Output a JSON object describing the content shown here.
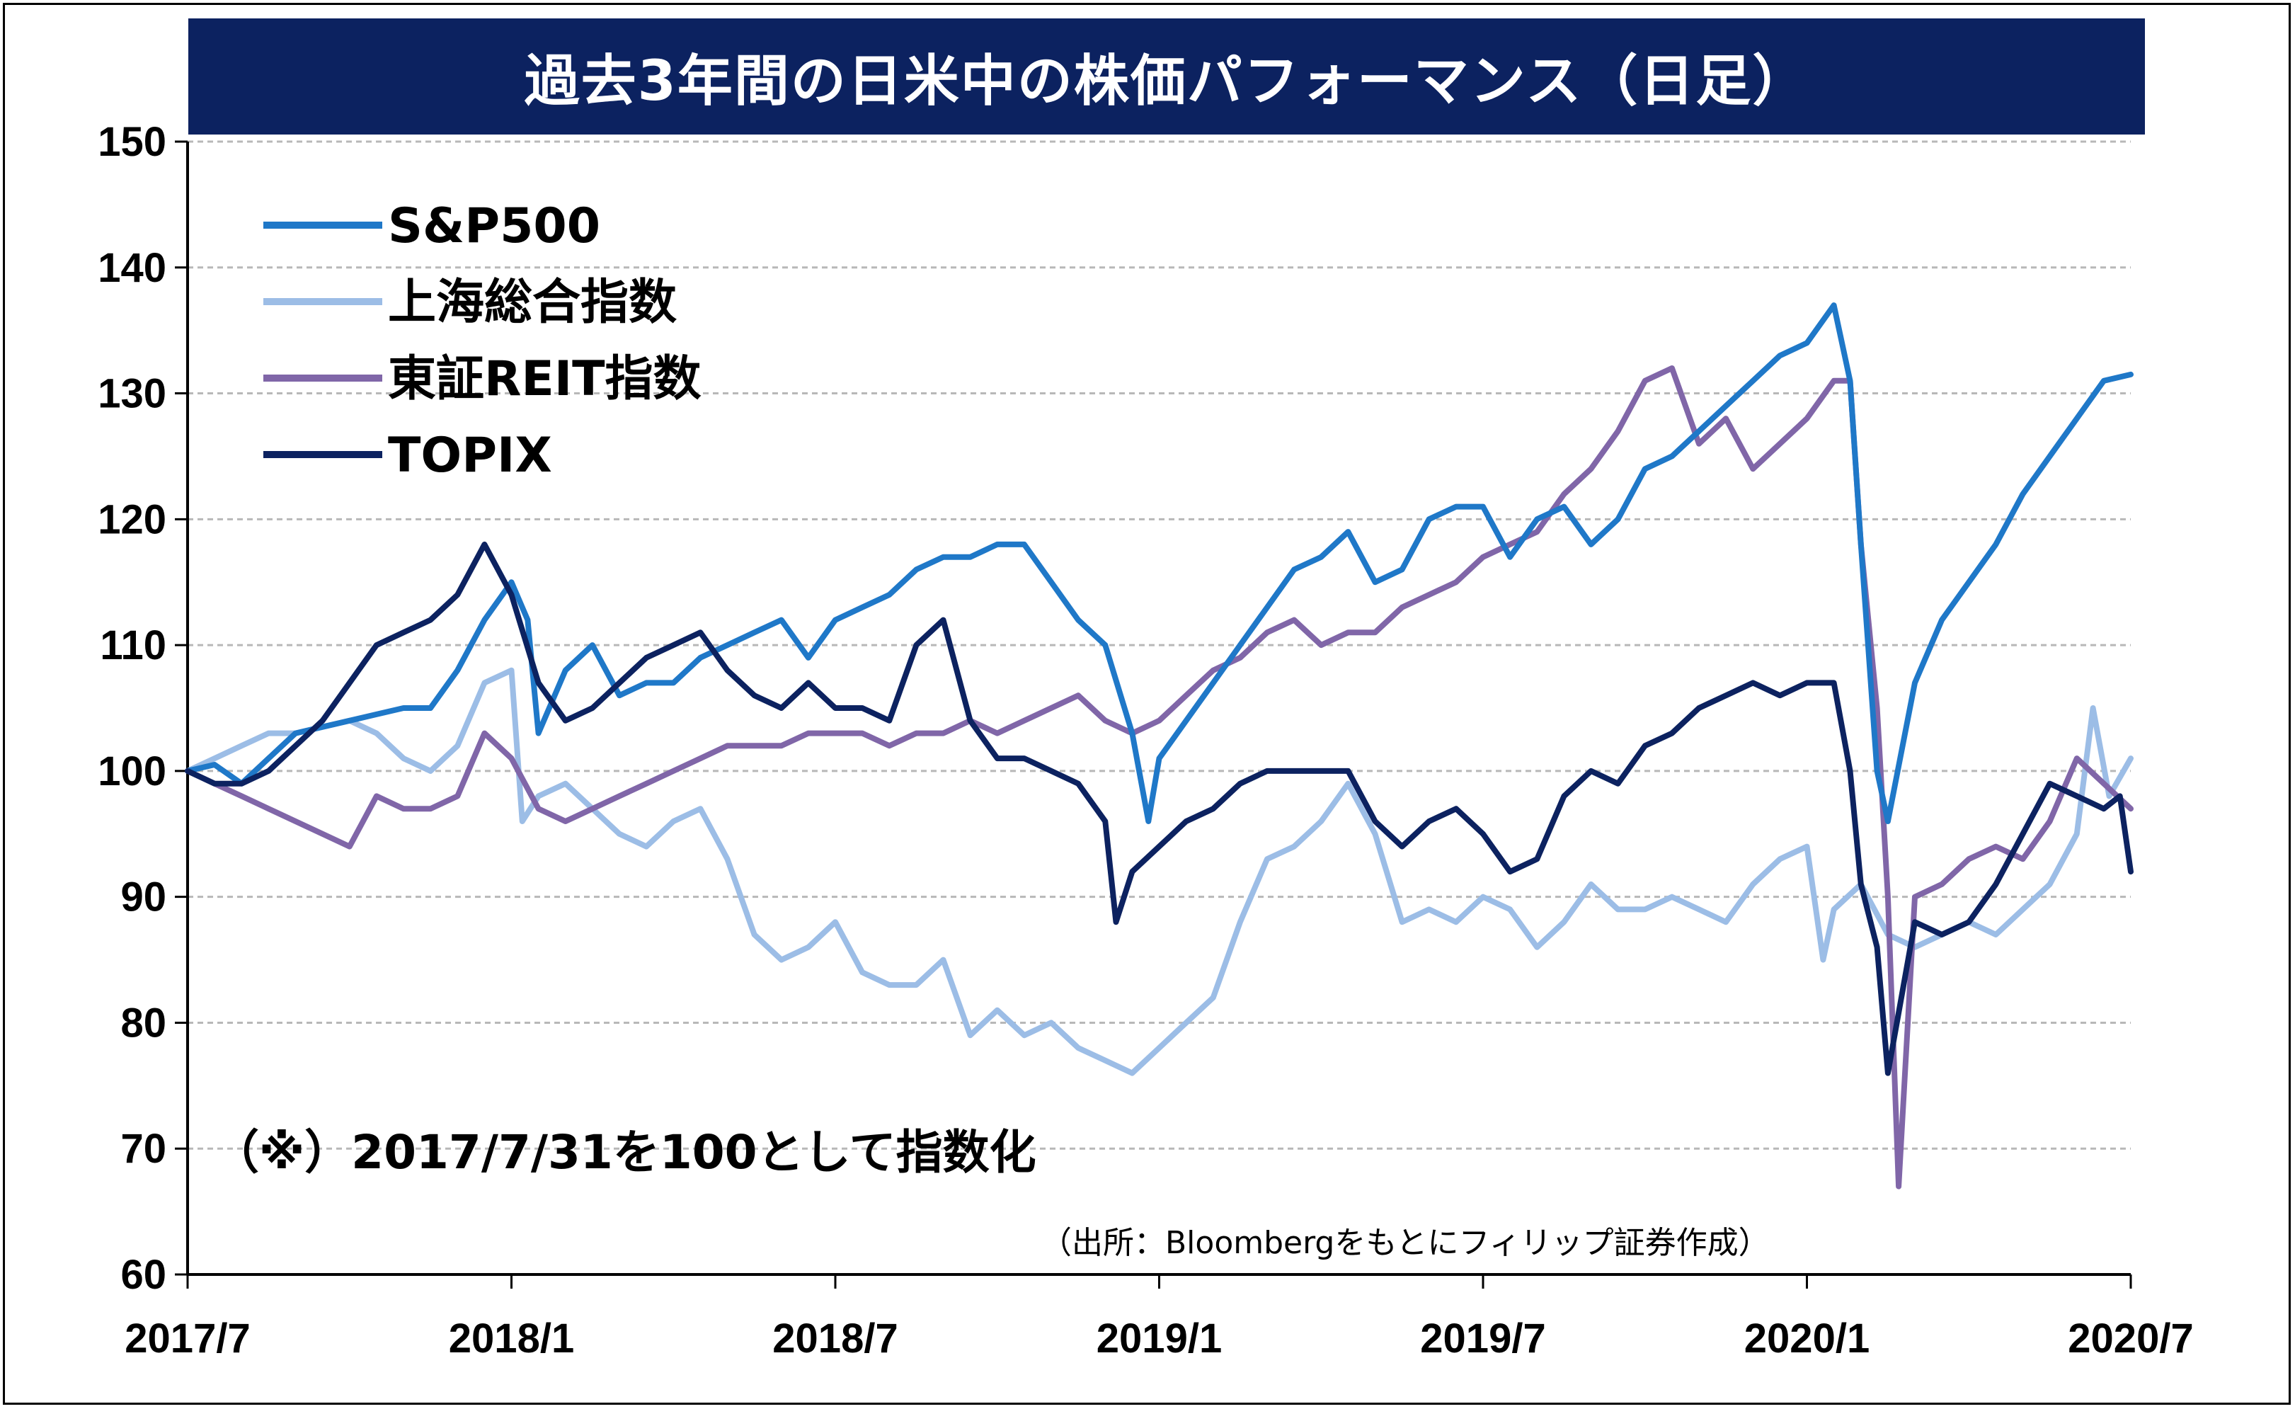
{
  "chart_data": {
    "type": "line",
    "title": "過去3年間の日米中の株価パフォーマンス（日足）",
    "x_tick_labels": [
      "2017/7",
      "2018/1",
      "2018/7",
      "2019/1",
      "2019/7",
      "2020/1",
      "2020/7"
    ],
    "x_ticks_months": [
      0,
      6,
      12,
      18,
      24,
      30,
      36
    ],
    "x_range_months": [
      0,
      36
    ],
    "ylim": [
      60,
      150
    ],
    "y_ticks": [
      60,
      70,
      80,
      90,
      100,
      110,
      120,
      130,
      140,
      150
    ],
    "grid": true,
    "legend_position": "top-left",
    "note": "（※）2017/7/31を100として指数化",
    "source": "（出所：Bloombergをもとにフィリップ証券作成）",
    "series": [
      {
        "name": "S&P500",
        "color": "#1f78c8",
        "points": [
          [
            0,
            100
          ],
          [
            0.5,
            100.5
          ],
          [
            1,
            99
          ],
          [
            1.5,
            101
          ],
          [
            2,
            103
          ],
          [
            2.5,
            103.5
          ],
          [
            3,
            104
          ],
          [
            3.5,
            104.5
          ],
          [
            4,
            105
          ],
          [
            4.5,
            105
          ],
          [
            5,
            108
          ],
          [
            5.5,
            112
          ],
          [
            6,
            115
          ],
          [
            6.3,
            112
          ],
          [
            6.5,
            103
          ],
          [
            7,
            108
          ],
          [
            7.5,
            110
          ],
          [
            8,
            106
          ],
          [
            8.5,
            107
          ],
          [
            9,
            107
          ],
          [
            9.5,
            109
          ],
          [
            10,
            110
          ],
          [
            10.5,
            111
          ],
          [
            11,
            112
          ],
          [
            11.5,
            109
          ],
          [
            12,
            112
          ],
          [
            12.5,
            113
          ],
          [
            13,
            114
          ],
          [
            13.5,
            116
          ],
          [
            14,
            117
          ],
          [
            14.5,
            117
          ],
          [
            15,
            118
          ],
          [
            15.5,
            118
          ],
          [
            16,
            115
          ],
          [
            16.5,
            112
          ],
          [
            17,
            110
          ],
          [
            17.5,
            103
          ],
          [
            17.8,
            96
          ],
          [
            18,
            101
          ],
          [
            18.5,
            104
          ],
          [
            19,
            107
          ],
          [
            19.5,
            110
          ],
          [
            20,
            113
          ],
          [
            20.5,
            116
          ],
          [
            21,
            117
          ],
          [
            21.5,
            119
          ],
          [
            22,
            115
          ],
          [
            22.5,
            116
          ],
          [
            23,
            120
          ],
          [
            23.5,
            121
          ],
          [
            24,
            121
          ],
          [
            24.5,
            117
          ],
          [
            25,
            120
          ],
          [
            25.5,
            121
          ],
          [
            26,
            118
          ],
          [
            26.5,
            120
          ],
          [
            27,
            124
          ],
          [
            27.5,
            125
          ],
          [
            28,
            127
          ],
          [
            28.5,
            129
          ],
          [
            29,
            131
          ],
          [
            29.5,
            133
          ],
          [
            30,
            134
          ],
          [
            30.5,
            137
          ],
          [
            30.8,
            131
          ],
          [
            31,
            118
          ],
          [
            31.3,
            100
          ],
          [
            31.5,
            96
          ],
          [
            32,
            107
          ],
          [
            32.5,
            112
          ],
          [
            33,
            115
          ],
          [
            33.5,
            118
          ],
          [
            34,
            122
          ],
          [
            34.5,
            125
          ],
          [
            35,
            128
          ],
          [
            35.5,
            131
          ],
          [
            36,
            131.5
          ]
        ]
      },
      {
        "name": "上海総合指数",
        "color": "#9cbde6",
        "points": [
          [
            0,
            100
          ],
          [
            0.5,
            101
          ],
          [
            1,
            102
          ],
          [
            1.5,
            103
          ],
          [
            2,
            103
          ],
          [
            2.5,
            103.5
          ],
          [
            3,
            104
          ],
          [
            3.5,
            103
          ],
          [
            4,
            101
          ],
          [
            4.5,
            100
          ],
          [
            5,
            102
          ],
          [
            5.5,
            107
          ],
          [
            6,
            108
          ],
          [
            6.2,
            96
          ],
          [
            6.5,
            98
          ],
          [
            7,
            99
          ],
          [
            7.5,
            97
          ],
          [
            8,
            95
          ],
          [
            8.5,
            94
          ],
          [
            9,
            96
          ],
          [
            9.5,
            97
          ],
          [
            10,
            93
          ],
          [
            10.5,
            87
          ],
          [
            11,
            85
          ],
          [
            11.5,
            86
          ],
          [
            12,
            88
          ],
          [
            12.5,
            84
          ],
          [
            13,
            83
          ],
          [
            13.5,
            83
          ],
          [
            14,
            85
          ],
          [
            14.5,
            79
          ],
          [
            15,
            81
          ],
          [
            15.5,
            79
          ],
          [
            16,
            80
          ],
          [
            16.5,
            78
          ],
          [
            17,
            77
          ],
          [
            17.5,
            76
          ],
          [
            18,
            78
          ],
          [
            18.5,
            80
          ],
          [
            19,
            82
          ],
          [
            19.5,
            88
          ],
          [
            20,
            93
          ],
          [
            20.5,
            94
          ],
          [
            21,
            96
          ],
          [
            21.5,
            99
          ],
          [
            22,
            95
          ],
          [
            22.5,
            88
          ],
          [
            23,
            89
          ],
          [
            23.5,
            88
          ],
          [
            24,
            90
          ],
          [
            24.5,
            89
          ],
          [
            25,
            86
          ],
          [
            25.5,
            88
          ],
          [
            26,
            91
          ],
          [
            26.5,
            89
          ],
          [
            27,
            89
          ],
          [
            27.5,
            90
          ],
          [
            28,
            89
          ],
          [
            28.5,
            88
          ],
          [
            29,
            91
          ],
          [
            29.5,
            93
          ],
          [
            30,
            94
          ],
          [
            30.3,
            85
          ],
          [
            30.5,
            89
          ],
          [
            31,
            91
          ],
          [
            31.5,
            87
          ],
          [
            32,
            86
          ],
          [
            32.5,
            87
          ],
          [
            33,
            88
          ],
          [
            33.5,
            87
          ],
          [
            34,
            89
          ],
          [
            34.5,
            91
          ],
          [
            35,
            95
          ],
          [
            35.3,
            105
          ],
          [
            35.6,
            98
          ],
          [
            36,
            101
          ]
        ]
      },
      {
        "name": "東証REIT指数",
        "color": "#8066a8",
        "points": [
          [
            0,
            100
          ],
          [
            0.5,
            99
          ],
          [
            1,
            98
          ],
          [
            1.5,
            97
          ],
          [
            2,
            96
          ],
          [
            2.5,
            95
          ],
          [
            3,
            94
          ],
          [
            3.5,
            98
          ],
          [
            4,
            97
          ],
          [
            4.5,
            97
          ],
          [
            5,
            98
          ],
          [
            5.5,
            103
          ],
          [
            6,
            101
          ],
          [
            6.5,
            97
          ],
          [
            7,
            96
          ],
          [
            7.5,
            97
          ],
          [
            8,
            98
          ],
          [
            8.5,
            99
          ],
          [
            9,
            100
          ],
          [
            9.5,
            101
          ],
          [
            10,
            102
          ],
          [
            10.5,
            102
          ],
          [
            11,
            102
          ],
          [
            11.5,
            103
          ],
          [
            12,
            103
          ],
          [
            12.5,
            103
          ],
          [
            13,
            102
          ],
          [
            13.5,
            103
          ],
          [
            14,
            103
          ],
          [
            14.5,
            104
          ],
          [
            15,
            103
          ],
          [
            15.5,
            104
          ],
          [
            16,
            105
          ],
          [
            16.5,
            106
          ],
          [
            17,
            104
          ],
          [
            17.5,
            103
          ],
          [
            18,
            104
          ],
          [
            18.5,
            106
          ],
          [
            19,
            108
          ],
          [
            19.5,
            109
          ],
          [
            20,
            111
          ],
          [
            20.5,
            112
          ],
          [
            21,
            110
          ],
          [
            21.5,
            111
          ],
          [
            22,
            111
          ],
          [
            22.5,
            113
          ],
          [
            23,
            114
          ],
          [
            23.5,
            115
          ],
          [
            24,
            117
          ],
          [
            24.5,
            118
          ],
          [
            25,
            119
          ],
          [
            25.5,
            122
          ],
          [
            26,
            124
          ],
          [
            26.5,
            127
          ],
          [
            27,
            131
          ],
          [
            27.5,
            132
          ],
          [
            28,
            126
          ],
          [
            28.5,
            128
          ],
          [
            29,
            124
          ],
          [
            29.5,
            126
          ],
          [
            30,
            128
          ],
          [
            30.5,
            131
          ],
          [
            30.8,
            131
          ],
          [
            31,
            118
          ],
          [
            31.3,
            105
          ],
          [
            31.5,
            90
          ],
          [
            31.7,
            67
          ],
          [
            32,
            90
          ],
          [
            32.5,
            91
          ],
          [
            33,
            93
          ],
          [
            33.5,
            94
          ],
          [
            34,
            93
          ],
          [
            34.5,
            96
          ],
          [
            35,
            101
          ],
          [
            35.5,
            99
          ],
          [
            36,
            97
          ]
        ]
      },
      {
        "name": "TOPIX",
        "color": "#0c2260",
        "points": [
          [
            0,
            100
          ],
          [
            0.5,
            99
          ],
          [
            1,
            99
          ],
          [
            1.5,
            100
          ],
          [
            2,
            102
          ],
          [
            2.5,
            104
          ],
          [
            3,
            107
          ],
          [
            3.5,
            110
          ],
          [
            4,
            111
          ],
          [
            4.5,
            112
          ],
          [
            5,
            114
          ],
          [
            5.5,
            118
          ],
          [
            6,
            114
          ],
          [
            6.5,
            107
          ],
          [
            7,
            104
          ],
          [
            7.5,
            105
          ],
          [
            8,
            107
          ],
          [
            8.5,
            109
          ],
          [
            9,
            110
          ],
          [
            9.5,
            111
          ],
          [
            10,
            108
          ],
          [
            10.5,
            106
          ],
          [
            11,
            105
          ],
          [
            11.5,
            107
          ],
          [
            12,
            105
          ],
          [
            12.5,
            105
          ],
          [
            13,
            104
          ],
          [
            13.5,
            110
          ],
          [
            14,
            112
          ],
          [
            14.5,
            104
          ],
          [
            15,
            101
          ],
          [
            15.5,
            101
          ],
          [
            16,
            100
          ],
          [
            16.5,
            99
          ],
          [
            17,
            96
          ],
          [
            17.2,
            88
          ],
          [
            17.5,
            92
          ],
          [
            18,
            94
          ],
          [
            18.5,
            96
          ],
          [
            19,
            97
          ],
          [
            19.5,
            99
          ],
          [
            20,
            100
          ],
          [
            20.5,
            100
          ],
          [
            21,
            100
          ],
          [
            21.5,
            100
          ],
          [
            22,
            96
          ],
          [
            22.5,
            94
          ],
          [
            23,
            96
          ],
          [
            23.5,
            97
          ],
          [
            24,
            95
          ],
          [
            24.5,
            92
          ],
          [
            25,
            93
          ],
          [
            25.5,
            98
          ],
          [
            26,
            100
          ],
          [
            26.5,
            99
          ],
          [
            27,
            102
          ],
          [
            27.5,
            103
          ],
          [
            28,
            105
          ],
          [
            28.5,
            106
          ],
          [
            29,
            107
          ],
          [
            29.5,
            106
          ],
          [
            30,
            107
          ],
          [
            30.5,
            107
          ],
          [
            30.8,
            100
          ],
          [
            31,
            91
          ],
          [
            31.3,
            86
          ],
          [
            31.5,
            76
          ],
          [
            32,
            88
          ],
          [
            32.5,
            87
          ],
          [
            33,
            88
          ],
          [
            33.5,
            91
          ],
          [
            34,
            95
          ],
          [
            34.5,
            99
          ],
          [
            35,
            98
          ],
          [
            35.5,
            97
          ],
          [
            35.8,
            98
          ],
          [
            36,
            92
          ]
        ]
      }
    ]
  }
}
